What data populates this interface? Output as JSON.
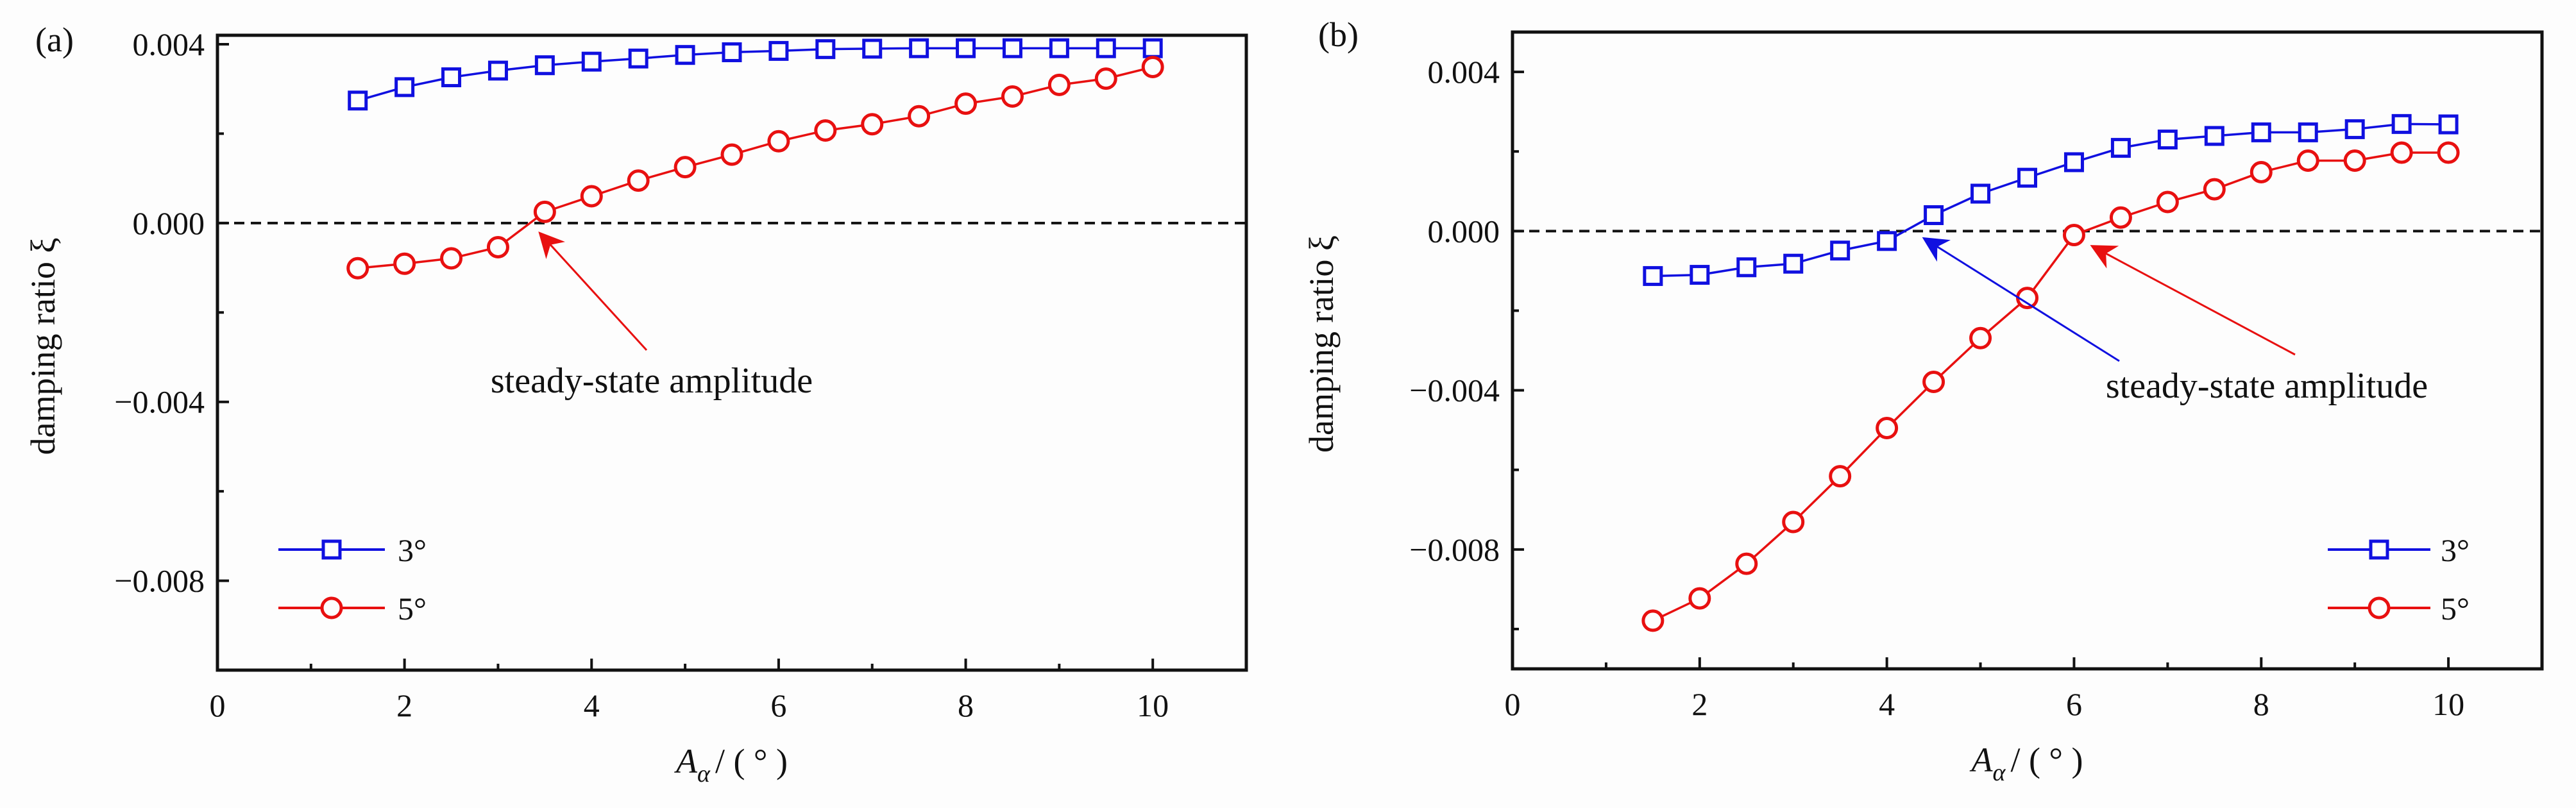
{
  "chart_data": [
    {
      "type": "line",
      "panel_label": "(a)",
      "xlabel": "A",
      "xlabel_sub": "α",
      "xlabel_unit": "/ ( ° )",
      "ylabel": "damping ratio ξ",
      "xlim": [
        0,
        11
      ],
      "ylim": [
        -0.01,
        0.0042
      ],
      "x_ticks": [
        0,
        2,
        4,
        6,
        8,
        10
      ],
      "x_tick_labels": [
        "0",
        "2",
        "4",
        "6",
        "8",
        "10"
      ],
      "y_ticks": [
        0.004,
        0.0,
        -0.004,
        -0.008
      ],
      "y_tick_labels": [
        "0.004",
        "0.000",
        "−0.004",
        "−0.008"
      ],
      "reference_line_y": 0,
      "legend_placement": "lower-left",
      "annotation": "steady-state amplitude",
      "x": [
        1.5,
        2,
        2.5,
        3,
        3.5,
        4,
        4.5,
        5,
        5.5,
        6,
        6.5,
        7,
        7.5,
        8,
        8.5,
        9,
        9.5,
        10
      ],
      "series": [
        {
          "name": "3°",
          "color": "#1010e0",
          "marker": "square",
          "values": [
            0.00274,
            0.00304,
            0.00326,
            0.00341,
            0.00353,
            0.00361,
            0.00368,
            0.00376,
            0.00382,
            0.00385,
            0.00389,
            0.0039,
            0.00391,
            0.00391,
            0.00391,
            0.00391,
            0.00391,
            0.00391
          ]
        },
        {
          "name": "5°",
          "color": "#e81010",
          "marker": "circle",
          "values": [
            -0.00101,
            -0.00091,
            -0.00079,
            -0.00054,
            0.00025,
            0.0006,
            0.00095,
            0.00125,
            0.00153,
            0.00183,
            0.00207,
            0.00221,
            0.00239,
            0.00267,
            0.00283,
            0.00309,
            0.00323,
            0.00349
          ]
        }
      ]
    },
    {
      "type": "line",
      "panel_label": "(b)",
      "xlabel": "A",
      "xlabel_sub": "α",
      "xlabel_unit": "/ ( ° )",
      "ylabel": "damping ratio ξ",
      "xlim": [
        0,
        11
      ],
      "ylim": [
        -0.011,
        0.005
      ],
      "x_ticks": [
        0,
        2,
        4,
        6,
        8,
        10
      ],
      "x_tick_labels": [
        "0",
        "2",
        "4",
        "6",
        "8",
        "10"
      ],
      "y_ticks": [
        0.004,
        0.0,
        -0.004,
        -0.008
      ],
      "y_tick_labels": [
        "0.004",
        "0.000",
        "−0.004",
        "−0.008"
      ],
      "reference_line_y": 0,
      "legend_placement": "lower-right",
      "annotation": "steady-state amplitude",
      "x": [
        1.5,
        2,
        2.5,
        3,
        3.5,
        4,
        4.5,
        5,
        5.5,
        6,
        6.5,
        7,
        7.5,
        8,
        8.5,
        9,
        9.5,
        10
      ],
      "series": [
        {
          "name": "3°",
          "color": "#1010e0",
          "marker": "square",
          "values": [
            -0.00113,
            -0.0011,
            -0.00091,
            -0.00082,
            -0.00049,
            -0.00025,
            0.0004,
            0.00094,
            0.00134,
            0.00173,
            0.00209,
            0.0023,
            0.00239,
            0.00248,
            0.00248,
            0.00256,
            0.00269,
            0.00268
          ]
        },
        {
          "name": "5°",
          "color": "#e81010",
          "marker": "circle",
          "values": [
            -0.00979,
            -0.00923,
            -0.00836,
            -0.00731,
            -0.00616,
            -0.00495,
            -0.00379,
            -0.00269,
            -0.00168,
            -0.0001,
            0.00034,
            0.00073,
            0.00105,
            0.00148,
            0.00177,
            0.00177,
            0.00197,
            0.00197
          ]
        }
      ]
    }
  ]
}
